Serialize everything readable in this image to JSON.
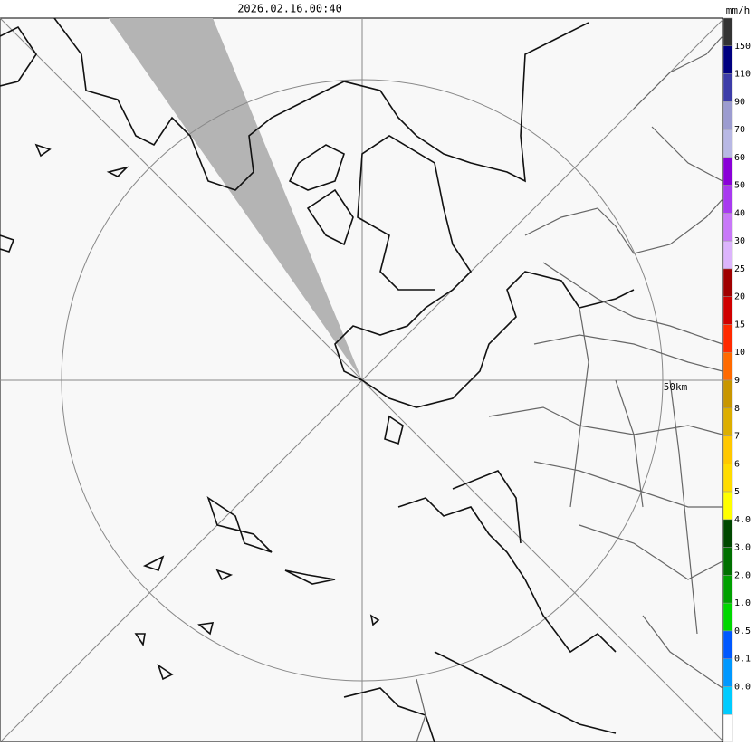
{
  "header": {
    "timestamp": "2026.02.16.00:40",
    "unit": "mm/h"
  },
  "map": {
    "range_label": "50km"
  },
  "legend": {
    "labels": [
      "150",
      "110",
      "90",
      "70",
      "60",
      "50",
      "40",
      "30",
      "25",
      "20",
      "15",
      "10",
      "9",
      "8",
      "7",
      "6",
      "5",
      "4.0",
      "3.0",
      "2.0",
      "1.0",
      "0.5",
      "0.1",
      "0.0"
    ],
    "colors": [
      "#333333",
      "#000080",
      "#3c3ca8",
      "#9c9cd0",
      "#b8b8e4",
      "#8a00d8",
      "#a83af0",
      "#c878f8",
      "#dcb4fc",
      "#a00000",
      "#d00000",
      "#ff2a00",
      "#ff6a00",
      "#c89600",
      "#dcae00",
      "#ffc800",
      "#ffdc00",
      "#ffff00",
      "#004800",
      "#007000",
      "#00a000",
      "#00d800",
      "#0058ff",
      "#0098ff",
      "#00ccff",
      "#ffffff"
    ]
  }
}
